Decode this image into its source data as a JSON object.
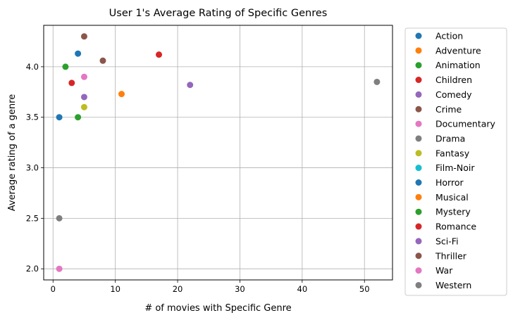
{
  "chart_data": {
    "type": "scatter",
    "title": "User 1's Average Rating of Specific Genres",
    "xlabel": "# of movies with Specific Genre",
    "ylabel": "Average rating of a genre",
    "xlim": [
      -1.5,
      54.5
    ],
    "ylim": [
      1.89,
      4.41
    ],
    "x_ticks": [
      0,
      10,
      20,
      30,
      40,
      50
    ],
    "x_tick_labels": [
      "0",
      "10",
      "20",
      "30",
      "40",
      "50"
    ],
    "y_ticks": [
      2.0,
      2.5,
      3.0,
      3.5,
      4.0
    ],
    "y_tick_labels": [
      "2.0",
      "2.5",
      "3.0",
      "3.5",
      "4.0"
    ],
    "grid": true,
    "legend_position": "outside-right",
    "series": [
      {
        "name": "Action",
        "color": "#1f77b4",
        "points": [
          {
            "x": 4,
            "y": 4.13
          },
          {
            "x": 1,
            "y": 3.5
          }
        ]
      },
      {
        "name": "Adventure",
        "color": "#ff7f0e",
        "points": [
          {
            "x": 11,
            "y": 3.73
          }
        ]
      },
      {
        "name": "Animation",
        "color": "#2ca02c",
        "points": [
          {
            "x": 2,
            "y": 4.0
          },
          {
            "x": 4,
            "y": 3.5
          }
        ]
      },
      {
        "name": "Children",
        "color": "#d62728",
        "points": [
          {
            "x": 17,
            "y": 4.12
          },
          {
            "x": 3,
            "y": 3.84
          }
        ]
      },
      {
        "name": "Comedy",
        "color": "#9467bd",
        "points": [
          {
            "x": 22,
            "y": 3.82
          },
          {
            "x": 5,
            "y": 3.7
          }
        ]
      },
      {
        "name": "Crime",
        "color": "#8c564b",
        "points": [
          {
            "x": 5,
            "y": 4.3
          },
          {
            "x": 8,
            "y": 4.06
          }
        ]
      },
      {
        "name": "Documentary",
        "color": "#e377c2",
        "points": [
          {
            "x": 5,
            "y": 3.9
          },
          {
            "x": 1,
            "y": 2.0
          }
        ]
      },
      {
        "name": "Drama",
        "color": "#7f7f7f",
        "points": [
          {
            "x": 52,
            "y": 3.85
          },
          {
            "x": 1,
            "y": 2.5
          }
        ]
      },
      {
        "name": "Fantasy",
        "color": "#bcbd22",
        "points": [
          {
            "x": 5,
            "y": 3.6
          }
        ]
      },
      {
        "name": "Film-Noir",
        "color": "#17becf",
        "points": []
      },
      {
        "name": "Horror",
        "color": "#1f77b4",
        "points": []
      },
      {
        "name": "Musical",
        "color": "#ff7f0e",
        "points": []
      },
      {
        "name": "Mystery",
        "color": "#2ca02c",
        "points": []
      },
      {
        "name": "Romance",
        "color": "#d62728",
        "points": []
      },
      {
        "name": "Sci-Fi",
        "color": "#9467bd",
        "points": []
      },
      {
        "name": "Thriller",
        "color": "#8c564b",
        "points": []
      },
      {
        "name": "War",
        "color": "#e377c2",
        "points": []
      },
      {
        "name": "Western",
        "color": "#7f7f7f",
        "points": []
      }
    ]
  }
}
